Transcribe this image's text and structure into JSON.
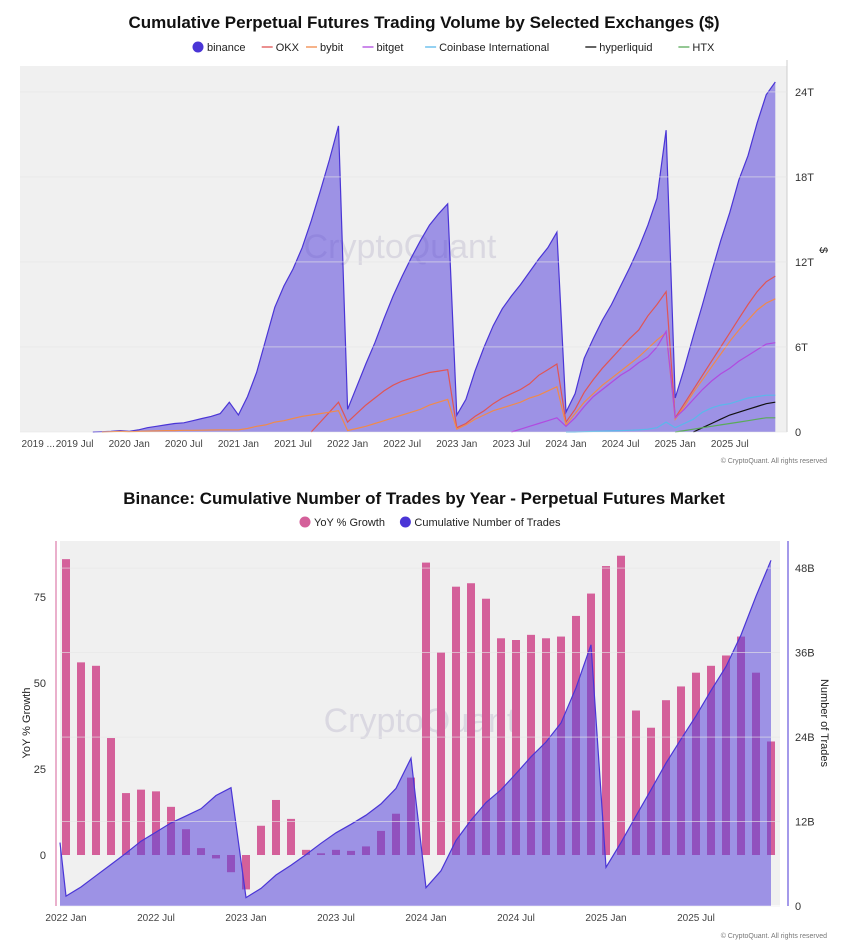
{
  "chart_data": [
    {
      "type": "area",
      "title": "Cumulative Perpetual Futures Trading Volume by Selected Exchanges ($)",
      "ylabel": "$",
      "ylim": [
        0,
        26
      ],
      "y_ticks": [
        0,
        6,
        12,
        18,
        24
      ],
      "y_tick_labels": [
        "0",
        "6T",
        "12T",
        "18T",
        "24T"
      ],
      "x_start": "2019-01",
      "x_tick_labels": [
        "2019 ...",
        "2019 Jul",
        "2020 Jan",
        "2020 Jul",
        "2021 Jan",
        "2021 Jul",
        "2022 Jan",
        "2022 Jul",
        "2023 Jan",
        "2023 Jul",
        "2024 Jan",
        "2024 Jul",
        "2025 Jan",
        "2025 Jul"
      ],
      "x_tick_months": [
        2,
        6,
        12,
        18,
        24,
        30,
        36,
        42,
        48,
        54,
        60,
        66,
        72,
        78
      ],
      "unit": "trillion USD",
      "legend_position": "top-center",
      "watermark": "CryptoQuant",
      "footer": "© CryptoQuant. All rights reserved",
      "series": [
        {
          "name": "binance",
          "kind": "area",
          "color": "#4a35d6",
          "start": "2019-09",
          "values": [
            0,
            0.02,
            0.05,
            0.1,
            0.05,
            0.15,
            0.3,
            0.4,
            0.5,
            0.6,
            0.65,
            0.8,
            0.95,
            1.1,
            1.3,
            2.1,
            1.2,
            2.5,
            4.2,
            6.5,
            8.8,
            10.3,
            11.5,
            13.0,
            14.9,
            17.0,
            19.2,
            21.6,
            1.6,
            3.2,
            4.8,
            6.3,
            8.0,
            9.6,
            11.0,
            12.3,
            13.5,
            14.6,
            15.4,
            16.1,
            1.2,
            2.3,
            4.3,
            6.0,
            7.5,
            8.7,
            9.6,
            10.4,
            11.3,
            12.2,
            13.0,
            14.1,
            1.4,
            2.7,
            5.2,
            6.6,
            7.9,
            9.0,
            10.3,
            11.6,
            13.0,
            14.6,
            16.5,
            21.3,
            2.4,
            4.5,
            6.8,
            9.0,
            11.3,
            13.5,
            15.5,
            17.8,
            19.5,
            21.8,
            23.8,
            24.7
          ]
        },
        {
          "name": "OKX",
          "kind": "line",
          "color": "#e05555",
          "start": "2021-09",
          "values": [
            0,
            0.7,
            1.4,
            2.1,
            0.7,
            1.3,
            1.9,
            2.4,
            2.9,
            3.3,
            3.6,
            3.8,
            4.0,
            4.2,
            4.3,
            4.4,
            0.3,
            0.6,
            1.1,
            1.5,
            2.0,
            2.4,
            2.7,
            3.0,
            3.4,
            4.0,
            4.4,
            4.8,
            0.7,
            1.6,
            2.8,
            3.7,
            4.5,
            5.2,
            5.9,
            6.6,
            7.2,
            8.2,
            9.0,
            9.9,
            1.0,
            2.0,
            3.0,
            4.0,
            5.0,
            6.0,
            7.0,
            8.0,
            9.0,
            9.9,
            10.6,
            11.0
          ]
        },
        {
          "name": "bybit",
          "kind": "line",
          "color": "#f08a4b",
          "start": "2019-10",
          "values": [
            0,
            0.02,
            0.05,
            0.02,
            0.04,
            0.06,
            0.08,
            0.1,
            0.1,
            0.12,
            0.12,
            0.13,
            0.14,
            0.15,
            0.15,
            0.15,
            0.25,
            0.4,
            0.5,
            0.7,
            0.8,
            0.95,
            1.1,
            1.2,
            1.3,
            1.4,
            1.5,
            0.1,
            0.25,
            0.4,
            0.6,
            0.8,
            1.0,
            1.2,
            1.4,
            1.6,
            1.9,
            2.1,
            2.3,
            0.2,
            0.5,
            0.9,
            1.2,
            1.5,
            1.7,
            1.9,
            2.1,
            2.4,
            2.6,
            2.9,
            3.2,
            0.5,
            1.3,
            2.1,
            2.7,
            3.3,
            3.8,
            4.3,
            4.8,
            5.3,
            5.9,
            6.5,
            7.0,
            0.9,
            1.8,
            2.8,
            3.7,
            4.6,
            5.5,
            6.4,
            7.2,
            7.9,
            8.6,
            9.1,
            9.4
          ]
        },
        {
          "name": "bitget",
          "kind": "line",
          "color": "#b04be0",
          "start": "2023-07",
          "values": [
            0,
            0.2,
            0.4,
            0.6,
            0.8,
            1.0,
            0.4,
            1.0,
            1.8,
            2.5,
            3.0,
            3.5,
            4.0,
            4.4,
            4.9,
            5.3,
            6.0,
            7.1,
            1.0,
            1.6,
            2.3,
            3.0,
            3.6,
            4.1,
            4.5,
            5.0,
            5.4,
            5.8,
            6.2,
            6.3
          ]
        },
        {
          "name": "Coinbase International",
          "kind": "line",
          "color": "#5ab8ea",
          "start": "2024-01",
          "values": [
            0,
            0,
            0.02,
            0.04,
            0.06,
            0.08,
            0.1,
            0.12,
            0.15,
            0.2,
            0.3,
            0.7,
            0.3,
            0.6,
            0.9,
            1.4,
            1.7,
            1.9,
            2.0,
            2.2,
            2.4,
            2.5,
            2.6,
            2.6
          ]
        },
        {
          "name": "hyperliquid",
          "kind": "line",
          "color": "#111111",
          "start": "2025-03",
          "values": [
            0,
            0.3,
            0.6,
            0.9,
            1.2,
            1.4,
            1.6,
            1.8,
            2.0,
            2.1
          ]
        },
        {
          "name": "HTX",
          "kind": "line",
          "color": "#5aaa5a",
          "start": "2025-01",
          "values": [
            0,
            0.1,
            0.2,
            0.3,
            0.4,
            0.5,
            0.6,
            0.7,
            0.8,
            0.9,
            1.0,
            1.0
          ]
        }
      ]
    },
    {
      "type": "bar+area",
      "title": "Binance: Cumulative Number of Trades by Year - Perpetual Futures Market",
      "legend_position": "top-center",
      "watermark": "CryptoQuant",
      "footer": "© CryptoQuant. All rights reserved",
      "x_start": "2022-01",
      "x_tick_labels": [
        "2022 Jan",
        "2022 Jul",
        "2023 Jan",
        "2023 Jul",
        "2024 Jan",
        "2024 Jul",
        "2025 Jan",
        "2025 Jul"
      ],
      "x_tick_months": [
        0,
        6,
        12,
        18,
        24,
        30,
        36,
        42
      ],
      "left_axis": {
        "label": "YoY % Growth",
        "ylim": [
          -13,
          95
        ],
        "ticks": [
          0,
          25,
          50,
          75
        ],
        "tick_labels": [
          "0",
          "25",
          "50",
          "75"
        ]
      },
      "right_axis": {
        "label": "Number of Trades",
        "ylim": [
          0,
          51.5
        ],
        "ticks": [
          0,
          12,
          24,
          36,
          48
        ],
        "tick_labels": [
          "0",
          "12B",
          "24B",
          "36B",
          "48B"
        ],
        "unit": "billion trades"
      },
      "series": [
        {
          "name": "YoY % Growth",
          "kind": "bar",
          "axis": "left",
          "color": "#d4609a",
          "values": [
            86,
            56,
            55,
            34,
            18,
            19,
            18.5,
            14,
            7.5,
            2,
            -1,
            -5,
            -10,
            8.5,
            16,
            10.5,
            1.5,
            0.5,
            1.5,
            1.2,
            2.5,
            7,
            12,
            22.5,
            85,
            59,
            78,
            79,
            74.5,
            63,
            62.5,
            64,
            63,
            63.5,
            69.5,
            76,
            84,
            87,
            42,
            37,
            45,
            49,
            53,
            55,
            58,
            63.5,
            53,
            33
          ]
        },
        {
          "name": "Cumulative Number of Trades",
          "kind": "area",
          "axis": "right",
          "color": "#4a35d6",
          "start_offset": -0.4,
          "start_value": 9.0,
          "values": [
            1.4,
            2.7,
            4.3,
            5.9,
            7.5,
            9.2,
            10.5,
            11.8,
            12.8,
            13.8,
            15.7,
            16.8,
            1.2,
            2.5,
            4.4,
            5.8,
            7.3,
            8.9,
            10.4,
            11.6,
            12.9,
            14.5,
            16.7,
            21.0,
            2.6,
            5.0,
            9.3,
            12.2,
            14.7,
            16.5,
            18.8,
            21.2,
            23.3,
            26.0,
            31.0,
            37.1,
            5.5,
            9.0,
            12.8,
            16.5,
            20.3,
            23.7,
            27.0,
            30.6,
            34.0,
            38.5,
            44.0,
            49.1
          ]
        }
      ]
    }
  ]
}
